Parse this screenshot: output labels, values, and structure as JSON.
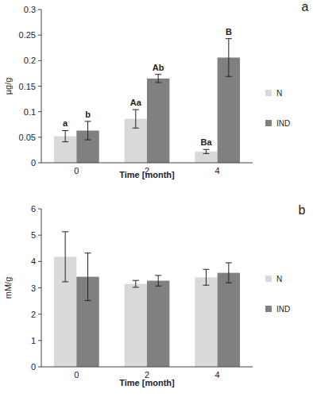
{
  "chart_data": [
    {
      "type": "bar",
      "title": "a",
      "x_label": "Time [month]",
      "y_label": "µg/g",
      "categories": [
        "0",
        "2",
        "4"
      ],
      "series": [
        {
          "name": "N",
          "color": "#d9d9d9",
          "values": [
            0.052,
            0.086,
            0.022
          ],
          "errors": [
            0.011,
            0.018,
            0.004
          ],
          "letters": [
            "a",
            "Aa",
            "Ba"
          ]
        },
        {
          "name": "IND",
          "color": "#808080",
          "values": [
            0.063,
            0.165,
            0.206
          ],
          "errors": [
            0.018,
            0.008,
            0.037
          ],
          "letters": [
            "b",
            "Ab",
            "B"
          ]
        }
      ],
      "ylim": [
        0,
        0.3
      ],
      "yticks": [
        0,
        0.05,
        0.1,
        0.15,
        0.2,
        0.25,
        0.3
      ],
      "grid": false,
      "legend": "right"
    },
    {
      "type": "bar",
      "title": "b",
      "x_label": "Time [month]",
      "y_label": "mM/g",
      "categories": [
        "0",
        "2",
        "4"
      ],
      "series": [
        {
          "name": "N",
          "color": "#d9d9d9",
          "values": [
            4.18,
            3.15,
            3.4
          ],
          "errors": [
            0.95,
            0.13,
            0.3
          ]
        },
        {
          "name": "IND",
          "color": "#808080",
          "values": [
            3.42,
            3.27,
            3.57
          ],
          "errors": [
            0.9,
            0.2,
            0.38
          ]
        }
      ],
      "ylim": [
        0,
        6
      ],
      "yticks": [
        0,
        1,
        2,
        3,
        4,
        5,
        6
      ],
      "grid": false,
      "legend": "right"
    }
  ]
}
